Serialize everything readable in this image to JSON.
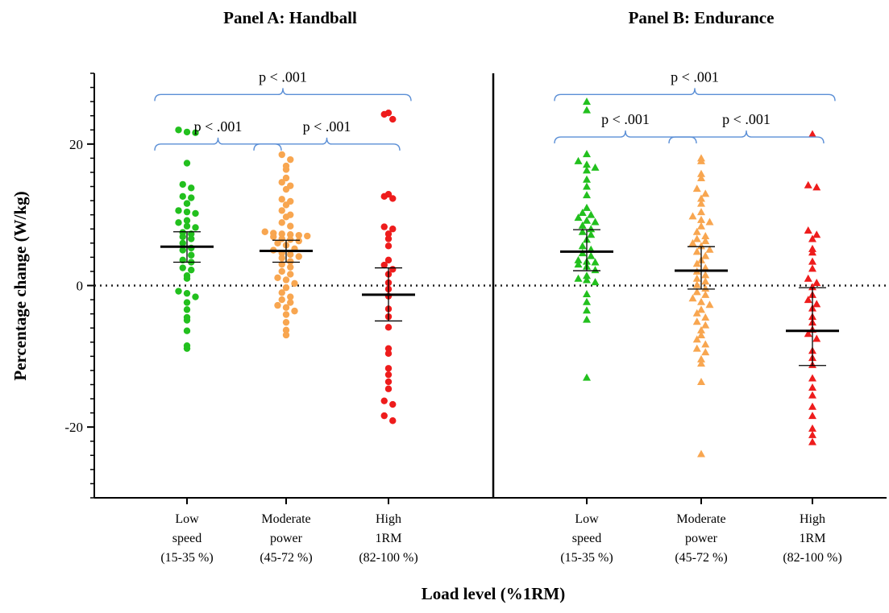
{
  "chart_data": {
    "type": "scatter",
    "ylabel": "Percentage change (W/kg)",
    "xlabel": "Load level (%1RM)",
    "ylim": [
      -30,
      30
    ],
    "yticks": [
      -20,
      0,
      20
    ],
    "reference_line": 0,
    "categories": [
      [
        "Low",
        "speed",
        "(15-35 %)"
      ],
      [
        "Moderate",
        "power",
        "(45-72 %)"
      ],
      [
        "High",
        "1RM",
        "(82-100 %)"
      ]
    ],
    "colors": {
      "low": "#22c01e",
      "moderate": "#f8a650",
      "high": "#ee1c1c",
      "bracket": "#5b8fd6"
    },
    "panels": [
      {
        "title": "Panel A: Handball",
        "marker": "circle",
        "comparisons": [
          {
            "label": "p < .001",
            "from": 0,
            "to": 1,
            "y": 20
          },
          {
            "label": "p < .001",
            "from": 1,
            "to": 2,
            "y": 20
          },
          {
            "label": "p < .001",
            "from": 0,
            "to": 2,
            "y": 27
          }
        ],
        "groups": [
          {
            "mean": 5.5,
            "ci": [
              3.3,
              7.6
            ],
            "values": [
              22,
              21.7,
              21.6,
              17.3,
              14.3,
              13.8,
              12.6,
              12.4,
              11.6,
              10.6,
              10.4,
              10.2,
              9.2,
              8.9,
              8.4,
              8.2,
              7.5,
              7.3,
              6.9,
              6.6,
              6,
              5.3,
              5,
              4.3,
              3.6,
              3.3,
              2.5,
              2.2,
              1.4,
              1,
              -0.8,
              -1.1,
              -1.6,
              -2.4,
              -3.4,
              -4.5,
              -4.9,
              -6.4,
              -8.5,
              -8.9
            ]
          },
          {
            "mean": 4.9,
            "ci": [
              3.3,
              6.4
            ],
            "values": [
              18.5,
              17.8,
              16.9,
              16.4,
              15.2,
              14.6,
              14.1,
              13.6,
              12.2,
              11.9,
              11.4,
              10.6,
              10,
              9.7,
              8.9,
              8.4,
              7.6,
              7.4,
              7.3,
              7.2,
              7.1,
              7,
              6.9,
              6.6,
              6.5,
              6.3,
              6,
              5.7,
              5.2,
              5,
              4.6,
              4.4,
              4.1,
              3.9,
              3.4,
              3,
              2.6,
              2,
              1.6,
              1.1,
              0.8,
              0.3,
              -0.3,
              -1,
              -1.6,
              -2,
              -2.4,
              -2.8,
              -3.1,
              -3.6,
              -4.1,
              -5.2,
              -6.3,
              -7
            ]
          },
          {
            "mean": -1.3,
            "ci": [
              -5,
              2.5
            ],
            "values": [
              24.4,
              24.2,
              23.5,
              12.9,
              12.6,
              12.3,
              8.3,
              8,
              7.3,
              6.6,
              5.6,
              3.6,
              2.9,
              2.3,
              1.6,
              0.4,
              -0.5,
              -1.5,
              -3.3,
              -4.4,
              -5.9,
              -8.9,
              -9.6,
              -11.7,
              -12.6,
              -13.6,
              -14.6,
              -16.3,
              -16.8,
              -18.4,
              -19.1
            ]
          }
        ]
      },
      {
        "title": "Panel B: Endurance",
        "marker": "triangle",
        "comparisons": [
          {
            "label": "p < .001",
            "from": 0,
            "to": 1,
            "y": 21
          },
          {
            "label": "p < .001",
            "from": 1,
            "to": 2,
            "y": 21
          },
          {
            "label": "p < .001",
            "from": 0,
            "to": 2,
            "y": 27
          }
        ],
        "groups": [
          {
            "mean": 4.8,
            "ci": [
              2.1,
              7.9
            ],
            "values": [
              26,
              24.8,
              18.6,
              17.6,
              17.1,
              16.7,
              16.3,
              15,
              14,
              12.8,
              11,
              10.3,
              10,
              9.6,
              9.2,
              9,
              8.5,
              8,
              7.6,
              7.2,
              6.5,
              5.6,
              5.1,
              4.6,
              4.2,
              3.6,
              3.4,
              3.3,
              3,
              2.7,
              2.2,
              1.4,
              1,
              0.8,
              0.5,
              -1.2,
              -2.3,
              -3.5,
              -4.8,
              -13
            ]
          },
          {
            "mean": 2.1,
            "ci": [
              -0.5,
              5.5
            ],
            "values": [
              18,
              17.6,
              15.8,
              15.2,
              13.7,
              13,
              12.3,
              11.6,
              10.4,
              9.8,
              9.3,
              9,
              8.4,
              7.6,
              7,
              6.6,
              6.3,
              6,
              5.6,
              5.1,
              4.8,
              4.2,
              3.6,
              3.1,
              2.5,
              2,
              1.5,
              1,
              0.6,
              0.1,
              -0.4,
              -0.9,
              -1.3,
              -1.8,
              -2.3,
              -2.7,
              -3.4,
              -3.9,
              -4.5,
              -5.1,
              -5.6,
              -6.3,
              -7,
              -7.6,
              -8.3,
              -8.9,
              -9.4,
              -10.4,
              -11,
              -13.6,
              -23.8
            ]
          },
          {
            "mean": -6.4,
            "ci": [
              -11.3,
              -0.3
            ],
            "values": [
              21.4,
              14.2,
              13.9,
              7.8,
              7.2,
              6.6,
              5.2,
              4.7,
              3.4,
              2.4,
              1,
              0.4,
              -0.2,
              -1.3,
              -2,
              -2.6,
              -3.2,
              -4.4,
              -5.2,
              -6.2,
              -6.8,
              -7.5,
              -9.2,
              -10.2,
              -11.2,
              -13.1,
              -14.4,
              -15.5,
              -17.1,
              -18.4,
              -20.2,
              -21.1,
              -22.1
            ]
          }
        ]
      }
    ]
  }
}
